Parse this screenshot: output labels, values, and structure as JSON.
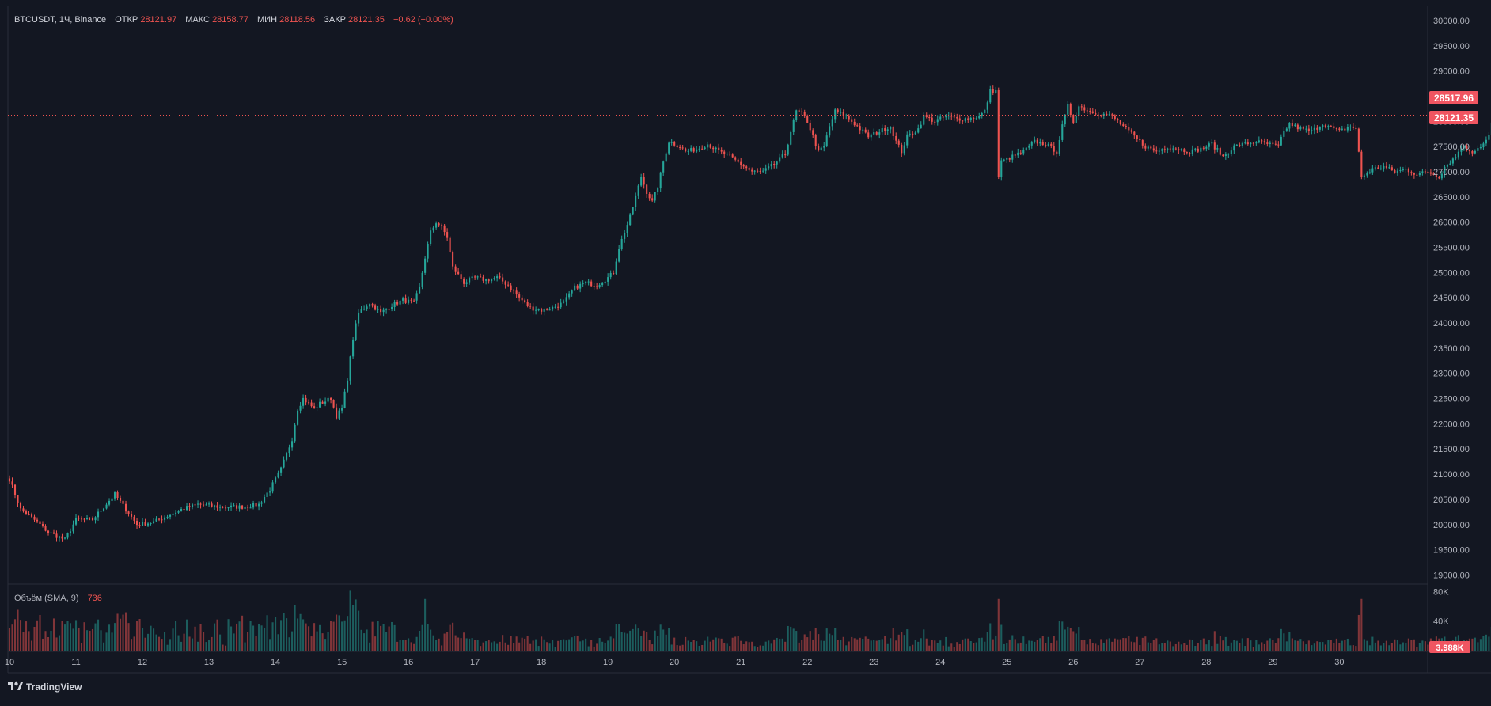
{
  "header": {
    "symbol": "BTCUSDT, 1Ч, Binance",
    "open_label": "ОТКР",
    "open": "28121.97",
    "high_label": "МАКС",
    "high": "28158.77",
    "low_label": "МИН",
    "low": "28118.56",
    "close_label": "ЗАКР",
    "close": "28121.35",
    "change": "−0.62 (−0.00%)"
  },
  "volume_legend": {
    "label": "Объём (SMA, 9)",
    "value": "736"
  },
  "price_labels": {
    "high_marker": "28517.96",
    "last_price": "28121.35",
    "volume_last": "3.988K"
  },
  "branding": {
    "logo_text": "TradingView",
    "logo_icon": "tradingview-icon"
  },
  "colors": {
    "up": "#26a69a",
    "down": "#ef5350",
    "last_price_line": "#ef5350",
    "background": "#131722"
  },
  "chart_data": {
    "type": "candlestick",
    "symbol": "BTCUSDT",
    "interval": "1Ч",
    "exchange": "Binance",
    "price_axis": {
      "ticks": [
        19000,
        19500,
        20000,
        20500,
        21000,
        21500,
        22000,
        22500,
        23000,
        23500,
        24000,
        24500,
        25000,
        25500,
        26000,
        26500,
        27000,
        27500,
        28000,
        28500,
        29000,
        29500,
        30000
      ],
      "tick_labels": [
        "19000.00",
        "19500.00",
        "20000.00",
        "20500.00",
        "21000.00",
        "21500.00",
        "22000.00",
        "22500.00",
        "23000.00",
        "23500.00",
        "24000.00",
        "24500.00",
        "25000.00",
        "25500.00",
        "26000.00",
        "26500.00",
        "27000.00",
        "27500.00",
        "28000.00",
        "28500.00",
        "29000.00",
        "29500.00",
        "30000.00"
      ],
      "range": [
        18850,
        30250
      ]
    },
    "time_axis": {
      "ticks": [
        "10",
        "11",
        "12",
        "13",
        "14",
        "15",
        "16",
        "17",
        "18",
        "19",
        "20",
        "21",
        "22",
        "23",
        "24",
        "25",
        "26",
        "27",
        "28",
        "29",
        "30"
      ]
    },
    "volume_axis": {
      "tick_labels": [
        "80K",
        "40K"
      ],
      "ticks": [
        80000,
        40000
      ],
      "max": 88000
    },
    "price_series": [
      [
        0,
        20900
      ],
      [
        4,
        20300
      ],
      [
        10,
        20050
      ],
      [
        14,
        19850
      ],
      [
        20,
        19700
      ],
      [
        24,
        20100
      ],
      [
        30,
        20100
      ],
      [
        34,
        20350
      ],
      [
        38,
        20600
      ],
      [
        42,
        20300
      ],
      [
        46,
        20000
      ],
      [
        52,
        20050
      ],
      [
        58,
        20200
      ],
      [
        62,
        20300
      ],
      [
        68,
        20400
      ],
      [
        76,
        20350
      ],
      [
        84,
        20350
      ],
      [
        90,
        20400
      ],
      [
        94,
        20700
      ],
      [
        98,
        21100
      ],
      [
        102,
        21700
      ],
      [
        104,
        22300
      ],
      [
        106,
        22500
      ],
      [
        110,
        22300
      ],
      [
        112,
        22400
      ],
      [
        116,
        22500
      ],
      [
        118,
        22150
      ],
      [
        120,
        22300
      ],
      [
        122,
        22900
      ],
      [
        124,
        23700
      ],
      [
        126,
        24200
      ],
      [
        130,
        24400
      ],
      [
        134,
        24200
      ],
      [
        138,
        24350
      ],
      [
        142,
        24450
      ],
      [
        146,
        24400
      ],
      [
        148,
        24700
      ],
      [
        150,
        25300
      ],
      [
        152,
        25800
      ],
      [
        154,
        26000
      ],
      [
        156,
        25900
      ],
      [
        158,
        25700
      ],
      [
        160,
        25100
      ],
      [
        164,
        24800
      ],
      [
        168,
        24900
      ],
      [
        172,
        24850
      ],
      [
        176,
        24900
      ],
      [
        180,
        24750
      ],
      [
        184,
        24500
      ],
      [
        188,
        24300
      ],
      [
        192,
        24250
      ],
      [
        196,
        24300
      ],
      [
        200,
        24400
      ],
      [
        204,
        24700
      ],
      [
        208,
        24800
      ],
      [
        212,
        24750
      ],
      [
        216,
        24900
      ],
      [
        218,
        25000
      ],
      [
        220,
        25500
      ],
      [
        222,
        25800
      ],
      [
        224,
        26100
      ],
      [
        226,
        26500
      ],
      [
        228,
        26900
      ],
      [
        230,
        26600
      ],
      [
        232,
        26400
      ],
      [
        234,
        26700
      ],
      [
        236,
        27200
      ],
      [
        238,
        27600
      ],
      [
        242,
        27500
      ],
      [
        244,
        27400
      ],
      [
        248,
        27450
      ],
      [
        252,
        27550
      ],
      [
        256,
        27400
      ],
      [
        260,
        27300
      ],
      [
        264,
        27150
      ],
      [
        268,
        27000
      ],
      [
        272,
        27000
      ],
      [
        276,
        27150
      ],
      [
        280,
        27350
      ],
      [
        282,
        27800
      ],
      [
        284,
        28200
      ],
      [
        286,
        28150
      ],
      [
        288,
        28000
      ],
      [
        290,
        27700
      ],
      [
        292,
        27400
      ],
      [
        294,
        27500
      ],
      [
        296,
        27900
      ],
      [
        298,
        28200
      ],
      [
        302,
        28100
      ],
      [
        306,
        27900
      ],
      [
        310,
        27700
      ],
      [
        314,
        27800
      ],
      [
        318,
        27900
      ],
      [
        320,
        27600
      ],
      [
        322,
        27400
      ],
      [
        324,
        27700
      ],
      [
        328,
        27850
      ],
      [
        330,
        28100
      ],
      [
        334,
        28000
      ],
      [
        338,
        28100
      ],
      [
        342,
        28050
      ],
      [
        346,
        28050
      ],
      [
        350,
        28100
      ],
      [
        352,
        28200
      ],
      [
        354,
        28600
      ],
      [
        356,
        28600
      ],
      [
        357,
        26900
      ],
      [
        358,
        27200
      ],
      [
        362,
        27300
      ],
      [
        366,
        27400
      ],
      [
        370,
        27600
      ],
      [
        374,
        27550
      ],
      [
        378,
        27400
      ],
      [
        380,
        27900
      ],
      [
        382,
        28300
      ],
      [
        384,
        28000
      ],
      [
        386,
        28300
      ],
      [
        390,
        28200
      ],
      [
        394,
        28150
      ],
      [
        398,
        28100
      ],
      [
        402,
        27900
      ],
      [
        406,
        27700
      ],
      [
        410,
        27500
      ],
      [
        414,
        27400
      ],
      [
        418,
        27500
      ],
      [
        422,
        27450
      ],
      [
        426,
        27400
      ],
      [
        430,
        27450
      ],
      [
        434,
        27550
      ],
      [
        438,
        27300
      ],
      [
        442,
        27500
      ],
      [
        446,
        27550
      ],
      [
        450,
        27600
      ],
      [
        454,
        27550
      ],
      [
        458,
        27500
      ],
      [
        460,
        27800
      ],
      [
        462,
        27950
      ],
      [
        466,
        27850
      ],
      [
        470,
        27800
      ],
      [
        474,
        27950
      ],
      [
        476,
        27900
      ],
      [
        480,
        27800
      ],
      [
        484,
        27900
      ],
      [
        486,
        27850
      ],
      [
        488,
        26900
      ],
      [
        492,
        27050
      ],
      [
        496,
        27100
      ],
      [
        500,
        27000
      ],
      [
        504,
        27050
      ],
      [
        508,
        26950
      ],
      [
        512,
        27000
      ],
      [
        516,
        26900
      ],
      [
        518,
        27100
      ],
      [
        522,
        27300
      ],
      [
        524,
        27500
      ],
      [
        528,
        27400
      ],
      [
        532,
        27550
      ],
      [
        534,
        27700
      ],
      [
        536,
        28200
      ],
      [
        538,
        28500
      ],
      [
        542,
        28400
      ],
      [
        546,
        28350
      ],
      [
        550,
        28300
      ],
      [
        552,
        28450
      ],
      [
        554,
        28700
      ],
      [
        556,
        28400
      ],
      [
        558,
        28550
      ],
      [
        560,
        28500
      ],
      [
        562,
        28600
      ],
      [
        564,
        28550
      ],
      [
        566,
        28121
      ]
    ]
  }
}
